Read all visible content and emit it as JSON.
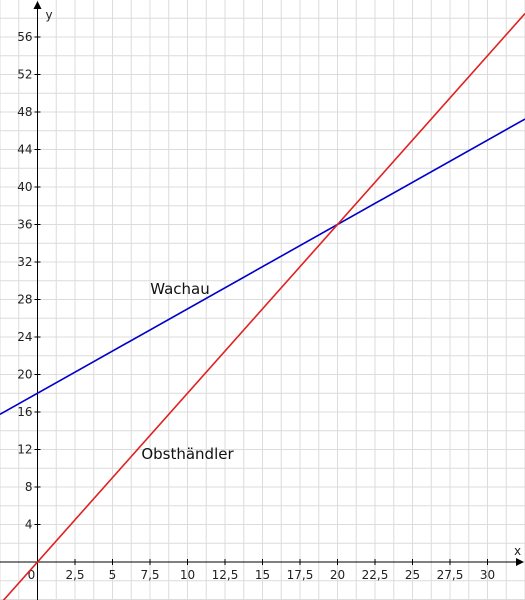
{
  "chart_data": {
    "type": "line",
    "xlabel": "x",
    "ylabel": "y",
    "xlim": [
      -2.5,
      32.5
    ],
    "ylim": [
      -4.2,
      59
    ],
    "grid": true,
    "x_ticks": [
      0,
      2.5,
      5,
      7.5,
      10,
      12.5,
      15,
      17.5,
      20,
      22.5,
      25,
      27.5,
      30
    ],
    "x_tick_labels": [
      "0",
      "2,5",
      "5",
      "7,5",
      "10",
      "12,5",
      "15",
      "17,5",
      "20",
      "22,5",
      "25",
      "27,5",
      "30"
    ],
    "y_ticks": [
      4,
      8,
      12,
      16,
      20,
      24,
      28,
      32,
      36,
      40,
      44,
      48,
      52,
      56
    ],
    "y_tick_labels": [
      "4",
      "8",
      "12",
      "16",
      "20",
      "24",
      "28",
      "32",
      "36",
      "40",
      "44",
      "48",
      "52",
      "56"
    ],
    "series": [
      {
        "name": "Wachau",
        "color": "#0000cc",
        "points": [
          [
            -2.5,
            15.75
          ],
          [
            32.5,
            47.25
          ]
        ],
        "label_at": [
          9.5,
          28.6
        ]
      },
      {
        "name": "Obsthändler",
        "color": "#e02020",
        "points": [
          [
            -2.5,
            -4.5
          ],
          [
            32.5,
            58.5
          ]
        ],
        "label_at": [
          10,
          11
        ]
      }
    ]
  }
}
